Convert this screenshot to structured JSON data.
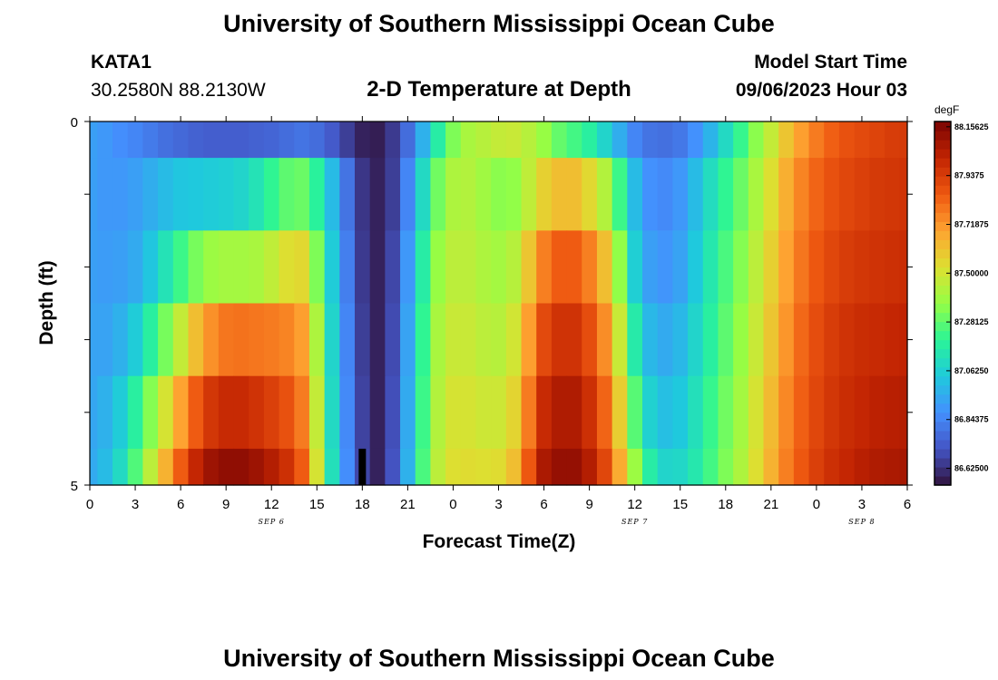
{
  "header": {
    "title": "University of Southern Mississippi Ocean Cube",
    "station_id": "KATA1",
    "location": "30.2580N  88.2130W",
    "subtitle": "2-D Temperature at Depth",
    "model_start_label": "Model Start Time",
    "model_start_value": "09/06/2023 Hour 03"
  },
  "footer": {
    "title": "University of Southern Mississippi Ocean Cube"
  },
  "chart_data": {
    "type": "heatmap",
    "xlabel": "Forecast Time(Z)",
    "ylabel": "Depth (ft)",
    "x_tick_labels": [
      "0",
      "3",
      "6",
      "9",
      "12",
      "15",
      "18",
      "21",
      "0",
      "3",
      "6",
      "9",
      "12",
      "15",
      "18",
      "21",
      "0",
      "3",
      "6"
    ],
    "date_labels": [
      {
        "text": "SEP 6",
        "at_hour": 12
      },
      {
        "text": "SEP 7",
        "at_hour": 36
      },
      {
        "text": "SEP 8",
        "at_hour": 51
      }
    ],
    "y_tick_labels": [
      "0",
      "5"
    ],
    "ylim": [
      0,
      5
    ],
    "y_inverted": true,
    "x_range_hours": [
      0,
      54
    ],
    "colorbar": {
      "unit": "degF",
      "min": 86.55,
      "max": 88.18,
      "ticks": [
        "88.15625",
        "87.9375",
        "87.71875",
        "87.50000",
        "87.28125",
        "87.06250",
        "86.84375",
        "86.62500"
      ],
      "colors": [
        "#30123b",
        "#4454c4",
        "#4490fe",
        "#1fc9dd",
        "#2af597",
        "#95fe45",
        "#dde031",
        "#fea331",
        "#ef5911",
        "#c22402",
        "#7a0403"
      ]
    },
    "time_steps_hours": [
      0,
      1,
      2,
      3,
      4,
      5,
      6,
      7,
      8,
      9,
      10,
      11,
      12,
      13,
      14,
      15,
      16,
      17,
      18,
      19,
      20,
      21,
      22,
      23,
      24,
      25,
      26,
      27,
      28,
      29,
      30,
      31,
      32,
      33,
      34,
      35,
      36,
      37,
      38,
      39,
      40,
      41,
      42,
      43,
      44,
      45,
      46,
      47,
      48,
      49,
      50,
      51,
      52,
      53,
      54
    ],
    "depth_levels_ft": [
      0,
      0.5,
      1.5,
      2.5,
      3.5,
      4.5
    ],
    "values_degF": [
      [
        86.92,
        86.9,
        86.87,
        86.85,
        86.82,
        86.79,
        86.77,
        86.75,
        86.74,
        86.74,
        86.74,
        86.75,
        86.76,
        86.78,
        86.8,
        86.78,
        86.73,
        86.66,
        86.59,
        86.58,
        86.65,
        86.78,
        86.97,
        87.17,
        87.33,
        87.41,
        87.44,
        87.47,
        87.48,
        87.44,
        87.37,
        87.29,
        87.24,
        87.18,
        87.08,
        86.96,
        86.85,
        86.8,
        86.79,
        86.81,
        86.88,
        86.98,
        87.1,
        87.22,
        87.35,
        87.47,
        87.6,
        87.7,
        87.78,
        87.84,
        87.88,
        87.9,
        87.92,
        87.94,
        87.95
      ],
      [
        86.92,
        86.9,
        86.9,
        86.92,
        86.96,
        87.0,
        87.03,
        87.04,
        87.05,
        87.06,
        87.08,
        87.13,
        87.21,
        87.28,
        87.3,
        87.19,
        87.0,
        86.8,
        86.64,
        86.59,
        86.66,
        86.85,
        87.1,
        87.31,
        87.42,
        87.43,
        87.39,
        87.35,
        87.36,
        87.46,
        87.57,
        87.62,
        87.62,
        87.55,
        87.43,
        87.23,
        87.0,
        86.88,
        86.86,
        86.9,
        87.0,
        87.11,
        87.21,
        87.3,
        87.41,
        87.53,
        87.66,
        87.76,
        87.83,
        87.88,
        87.91,
        87.93,
        87.95,
        87.96,
        87.97
      ],
      [
        86.92,
        86.91,
        86.92,
        86.95,
        87.03,
        87.13,
        87.23,
        87.32,
        87.38,
        87.4,
        87.4,
        87.41,
        87.46,
        87.53,
        87.55,
        87.33,
        87.05,
        86.83,
        86.65,
        86.59,
        86.68,
        86.9,
        87.17,
        87.37,
        87.45,
        87.45,
        87.42,
        87.4,
        87.44,
        87.6,
        87.77,
        87.85,
        87.85,
        87.77,
        87.62,
        87.36,
        87.06,
        86.92,
        86.89,
        86.93,
        87.04,
        87.15,
        87.25,
        87.34,
        87.45,
        87.57,
        87.69,
        87.79,
        87.86,
        87.91,
        87.94,
        87.96,
        87.97,
        87.98,
        87.99
      ],
      [
        86.93,
        86.93,
        86.97,
        87.05,
        87.18,
        87.32,
        87.47,
        87.62,
        87.73,
        87.79,
        87.8,
        87.79,
        87.78,
        87.76,
        87.7,
        87.42,
        87.08,
        86.85,
        86.66,
        86.59,
        86.69,
        86.93,
        87.21,
        87.41,
        87.48,
        87.48,
        87.45,
        87.44,
        87.5,
        87.7,
        87.9,
        87.97,
        87.97,
        87.89,
        87.74,
        87.48,
        87.16,
        86.99,
        86.95,
        86.99,
        87.08,
        87.18,
        87.28,
        87.37,
        87.48,
        87.6,
        87.72,
        87.82,
        87.89,
        87.94,
        87.97,
        87.99,
        88.0,
        88.01,
        88.02
      ],
      [
        86.94,
        86.97,
        87.05,
        87.18,
        87.34,
        87.51,
        87.69,
        87.85,
        87.96,
        88.0,
        88.0,
        87.97,
        87.93,
        87.88,
        87.78,
        87.47,
        87.1,
        86.86,
        86.67,
        86.59,
        86.7,
        86.95,
        87.23,
        87.43,
        87.51,
        87.51,
        87.49,
        87.49,
        87.56,
        87.78,
        88.0,
        88.06,
        88.06,
        87.98,
        87.83,
        87.58,
        87.27,
        87.07,
        87.01,
        87.04,
        87.12,
        87.22,
        87.31,
        87.4,
        87.51,
        87.63,
        87.75,
        87.84,
        87.91,
        87.96,
        87.99,
        88.01,
        88.03,
        88.04,
        88.05
      ],
      [
        86.95,
        87.0,
        87.1,
        87.26,
        87.45,
        87.65,
        87.85,
        88.01,
        88.1,
        88.13,
        88.13,
        88.1,
        88.05,
        87.98,
        87.85,
        87.51,
        87.12,
        86.87,
        86.68,
        86.59,
        86.71,
        86.97,
        87.25,
        87.45,
        87.53,
        87.54,
        87.53,
        87.54,
        87.62,
        87.86,
        88.07,
        88.12,
        88.12,
        88.05,
        87.91,
        87.67,
        87.38,
        87.17,
        87.08,
        87.09,
        87.15,
        87.24,
        87.33,
        87.42,
        87.53,
        87.65,
        87.77,
        87.86,
        87.93,
        87.98,
        88.01,
        88.04,
        88.06,
        88.07,
        88.08
      ]
    ],
    "marker": {
      "at_hour": 18,
      "depth_from_ft": 4.5,
      "depth_to_ft": 5
    }
  }
}
